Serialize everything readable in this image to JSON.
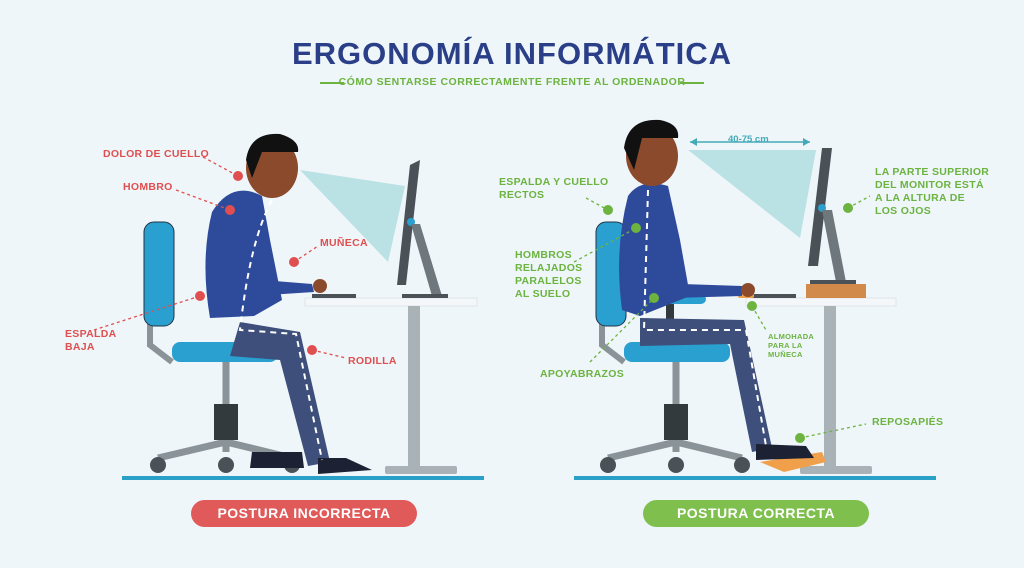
{
  "header": {
    "title": "ERGONOMÍA INFORMÁTICA",
    "subtitle": "CÓMO SENTARSE CORRECTAMENTE FRENTE AL ORDENADOR"
  },
  "incorrect": {
    "labels": {
      "neck": "DOLOR DE CUELLO",
      "shoulder": "HOMBRO",
      "wrist": "MUÑECA",
      "lower_back": "ESPALDA\nBAJA",
      "knee": "RODILLA"
    },
    "badge": "POSTURA INCORRECTA"
  },
  "correct": {
    "labels": {
      "back_neck": "ESPALDA Y CUELLO\nRECTOS",
      "shoulders": "HOMBROS\nRELAJADOS\nPARALELOS\nAL SUELO",
      "armrests": "APOYABRAZOS",
      "wrist_pad": "ALMOHADA\nPARA LA\nMUÑECA",
      "monitor_top": "LA PARTE SUPERIOR\nDEL MONITOR ESTÁ\nA LA ALTURA DE\nLOS OJOS",
      "footrest": "REPOSAPIÉS",
      "distance": "40-75 cm"
    },
    "badge": "POSTURA CORRECTA"
  },
  "colors": {
    "title": "#2a3f87",
    "accent_green": "#6cb33f",
    "accent_red": "#e04f4f",
    "bad_badge": "#e05a5a",
    "good_badge": "#7fbf4d",
    "shirt": "#2e4a9b",
    "pants": "#3d4f7a",
    "chair_seat": "#2aa0d0",
    "sight_cone": "#a8dadc"
  }
}
